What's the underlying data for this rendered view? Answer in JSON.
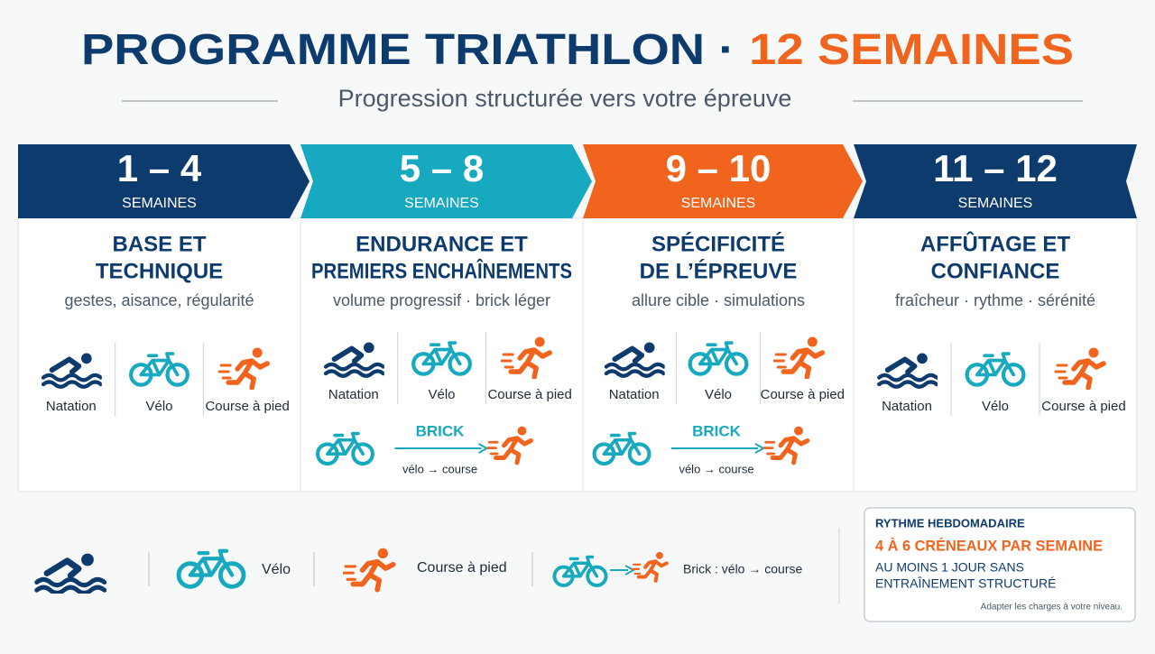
{
  "header": {
    "title_main": "PROGRAMME TRIATHLON ·",
    "title_accent": "12 SEMAINES",
    "subtitle": "Progression structurée vers votre épreuve"
  },
  "phases": [
    {
      "range": "1 – 4",
      "unit": "SEMAINES",
      "title_lines": [
        "BASE ET",
        "TECHNIQUE"
      ],
      "subtitle": "gestes, aisance, régularité",
      "sports": [
        "Natation",
        "Vélo",
        "Course à pied"
      ]
    },
    {
      "range": "5 – 8",
      "unit": "SEMAINES",
      "title_lines": [
        "ENDURANCE ET",
        "PREMIERS ENCHAÎNEMENTS"
      ],
      "subtitle": "volume progressif · brick léger",
      "sports": [
        "Natation",
        "Vélo",
        "Course à pied"
      ],
      "brick": {
        "label": "BRICK",
        "caption": "vélo → course"
      }
    },
    {
      "range": "9 – 10",
      "unit": "SEMAINES",
      "title_lines": [
        "SPÉCIFICITÉ",
        "DE L’ÉPREUVE"
      ],
      "subtitle": "allure cible · simulations",
      "sports": [
        "Natation",
        "Vélo",
        "Course à pied"
      ],
      "brick": {
        "label": "BRICK",
        "caption": "vélo → course"
      }
    },
    {
      "range": "11 – 12",
      "unit": "SEMAINES",
      "title_lines": [
        "AFFÛTAGE ET",
        "CONFIANCE"
      ],
      "subtitle": "fraîcheur · rythme · sérénité",
      "sports": [
        "Natation",
        "Vélo",
        "Course à pied"
      ]
    }
  ],
  "legend": {
    "bike": "Vélo",
    "run": "Course à pied",
    "brick": "Brick : vélo → course"
  },
  "weekly": {
    "heading": "RYTHME HEBDOMADAIRE",
    "highlight": "4 À 6 CRÉNEAUX PAR SEMAINE",
    "note_lines": [
      "AU MOINS 1 JOUR SANS",
      "ENTRAÎNEMENT STRUCTURÉ"
    ],
    "footnote": "Adapter les charges à votre niveau."
  }
}
